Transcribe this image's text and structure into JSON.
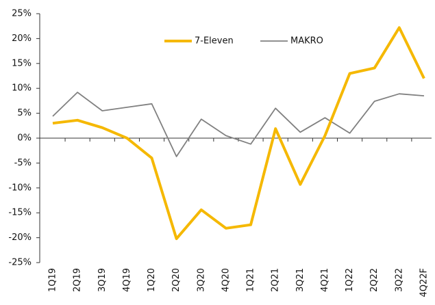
{
  "chart_data": {
    "type": "line",
    "categories": [
      "1Q19",
      "2Q19",
      "3Q19",
      "4Q19",
      "1Q20",
      "2Q20",
      "3Q20",
      "4Q20",
      "1Q21",
      "2Q21",
      "3Q21",
      "4Q21",
      "1Q22",
      "2Q22",
      "3Q22",
      "4Q22F"
    ],
    "series": [
      {
        "name": "7-Eleven",
        "color": "#f5b800",
        "values": [
          3.0,
          3.6,
          2.1,
          0,
          -4.0,
          -20.2,
          -14.4,
          -18.1,
          -17.4,
          1.9,
          -9.3,
          0.5,
          13.0,
          14.1,
          22.2,
          12.0
        ]
      },
      {
        "name": "MAKRO",
        "color": "#808080",
        "values": [
          4.4,
          9.2,
          5.5,
          6.2,
          6.9,
          -3.7,
          3.8,
          0.5,
          -1.2,
          6.0,
          1.2,
          4.1,
          1.0,
          7.4,
          8.9,
          8.5
        ]
      }
    ],
    "ylim": [
      -25,
      25
    ],
    "yticks": [
      {
        "value": -25,
        "label": "-25%"
      },
      {
        "value": -20,
        "label": "-20%"
      },
      {
        "value": -15,
        "label": "-15%"
      },
      {
        "value": -10,
        "label": "-10%"
      },
      {
        "value": -5,
        "label": "-5%"
      },
      {
        "value": 0,
        "label": "0%"
      },
      {
        "value": 5,
        "label": "5%"
      },
      {
        "value": 10,
        "label": "10%"
      },
      {
        "value": 15,
        "label": "15%"
      },
      {
        "value": 20,
        "label": "20%"
      },
      {
        "value": 25,
        "label": "25%"
      }
    ],
    "legend": "top"
  }
}
